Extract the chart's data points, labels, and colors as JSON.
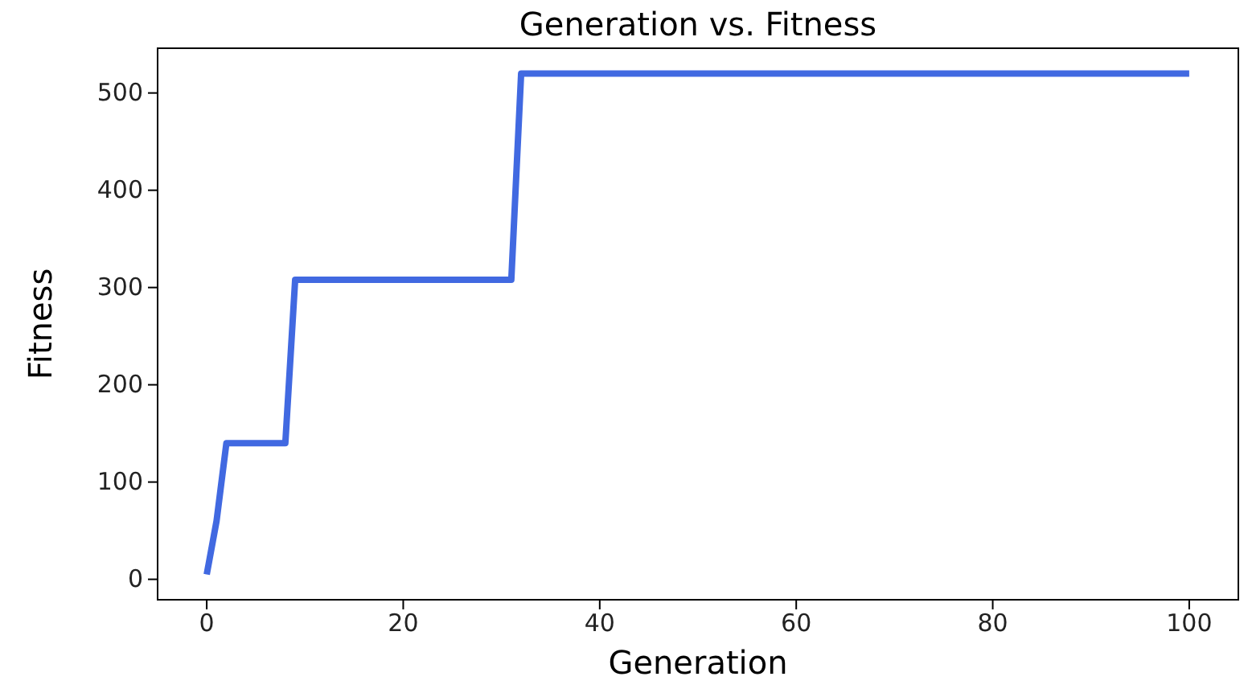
{
  "chart_data": {
    "type": "line",
    "title": "Generation vs. Fitness",
    "xlabel": "Generation",
    "ylabel": "Fitness",
    "x": [
      0,
      1,
      2,
      8,
      9,
      31,
      32,
      100
    ],
    "series": [
      {
        "color": "#4169e1",
        "values": [
          5,
          60,
          140,
          140,
          308,
          308,
          520,
          520
        ]
      }
    ],
    "xlim": [
      -5,
      105
    ],
    "xticks": [
      0,
      20,
      40,
      60,
      80,
      100
    ],
    "ylim": [
      -21,
      546
    ],
    "yticks": [
      0,
      100,
      200,
      300,
      400,
      500
    ],
    "grid": false,
    "marker": "none",
    "line_style": "solid"
  }
}
